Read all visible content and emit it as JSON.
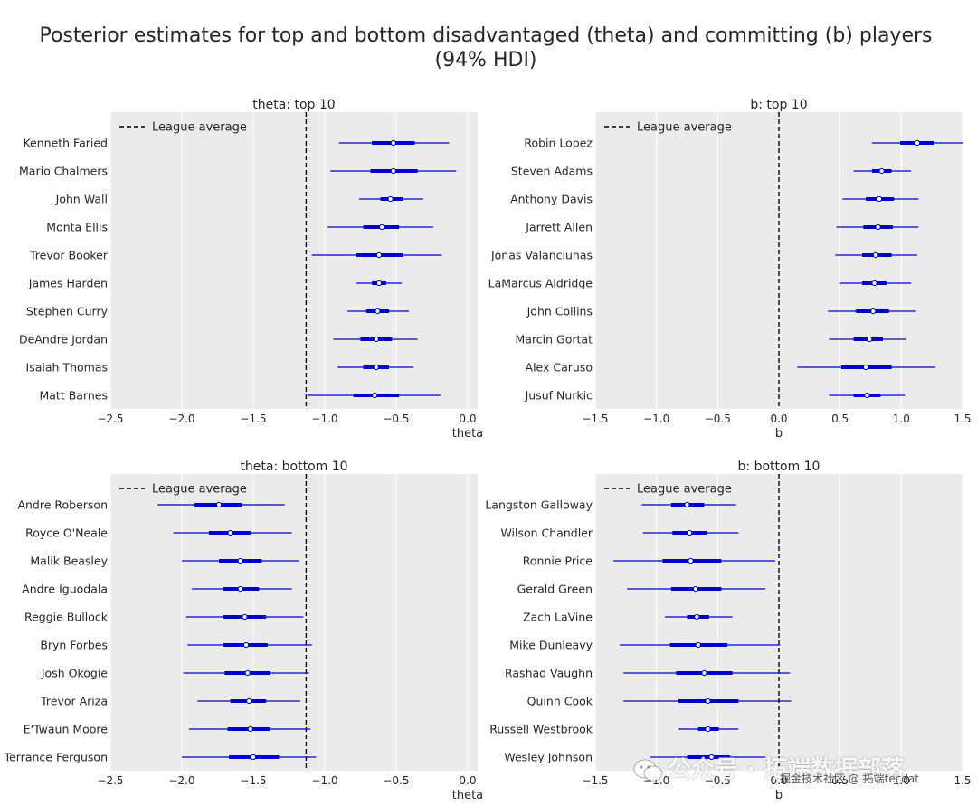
{
  "figure": {
    "title_line1": "Posterior estimates for top and bottom disadvantaged (theta) and committing (b) players",
    "title_line2": "(94% HDI)"
  },
  "watermark": {
    "text": "公众号 · 拓端数据部落",
    "sub": "掘金技术社区 @ 拓端tecdat"
  },
  "colors": {
    "background": "#ebebeb",
    "grid": "#ffffff",
    "interval": "#0000cc",
    "reference": "#000000",
    "text": "#262626"
  },
  "chart_data": [
    {
      "type": "forest",
      "title": "theta: top 10",
      "xlabel": "theta",
      "xlim": [
        -2.5,
        0.07
      ],
      "xticks": [
        -2.5,
        -2.0,
        -1.5,
        -1.0,
        -0.5,
        0.0
      ],
      "xtick_labels": [
        "−2.5",
        "−2.0",
        "−1.5",
        "−1.0",
        "−0.5",
        "0.0"
      ],
      "reference_line": -1.13,
      "legend": {
        "label": "League average",
        "placement": "top-left"
      },
      "grid": true,
      "players": [
        {
          "name": "Kenneth Faried",
          "mean": -0.52,
          "hdi_low": -0.9,
          "hdi_high": -0.13,
          "iqr_low": -0.67,
          "iqr_high": -0.37
        },
        {
          "name": "Mario Chalmers",
          "mean": -0.52,
          "hdi_low": -0.96,
          "hdi_high": -0.08,
          "iqr_low": -0.68,
          "iqr_high": -0.35
        },
        {
          "name": "John Wall",
          "mean": -0.54,
          "hdi_low": -0.76,
          "hdi_high": -0.31,
          "iqr_low": -0.61,
          "iqr_high": -0.45
        },
        {
          "name": "Monta Ellis",
          "mean": -0.6,
          "hdi_low": -0.98,
          "hdi_high": -0.24,
          "iqr_low": -0.73,
          "iqr_high": -0.48
        },
        {
          "name": "Trevor Booker",
          "mean": -0.62,
          "hdi_low": -1.09,
          "hdi_high": -0.18,
          "iqr_low": -0.78,
          "iqr_high": -0.45
        },
        {
          "name": "James Harden",
          "mean": -0.62,
          "hdi_low": -0.78,
          "hdi_high": -0.46,
          "iqr_low": -0.67,
          "iqr_high": -0.57
        },
        {
          "name": "Stephen Curry",
          "mean": -0.63,
          "hdi_low": -0.84,
          "hdi_high": -0.41,
          "iqr_low": -0.71,
          "iqr_high": -0.55
        },
        {
          "name": "DeAndre Jordan",
          "mean": -0.64,
          "hdi_low": -0.94,
          "hdi_high": -0.35,
          "iqr_low": -0.75,
          "iqr_high": -0.53
        },
        {
          "name": "Isaiah Thomas",
          "mean": -0.64,
          "hdi_low": -0.91,
          "hdi_high": -0.38,
          "iqr_low": -0.73,
          "iqr_high": -0.55
        },
        {
          "name": "Matt Barnes",
          "mean": -0.65,
          "hdi_low": -1.12,
          "hdi_high": -0.19,
          "iqr_low": -0.8,
          "iqr_high": -0.48
        }
      ]
    },
    {
      "type": "forest",
      "title": "b: top 10",
      "xlabel": "b",
      "xlim": [
        -1.5,
        1.5
      ],
      "xticks": [
        -1.5,
        -1.0,
        -0.5,
        0.0,
        0.5,
        1.0,
        1.5
      ],
      "xtick_labels": [
        "−1.5",
        "−1.0",
        "−0.5",
        "0.0",
        "0.5",
        "1.0",
        "1.5"
      ],
      "reference_line": 0.0,
      "legend": {
        "label": "League average",
        "placement": "top-left"
      },
      "grid": true,
      "players": [
        {
          "name": "Robin Lopez",
          "mean": 1.13,
          "hdi_low": 0.76,
          "hdi_high": 1.5,
          "iqr_low": 0.99,
          "iqr_high": 1.27
        },
        {
          "name": "Steven Adams",
          "mean": 0.84,
          "hdi_low": 0.61,
          "hdi_high": 1.08,
          "iqr_low": 0.76,
          "iqr_high": 0.92
        },
        {
          "name": "Anthony Davis",
          "mean": 0.82,
          "hdi_low": 0.52,
          "hdi_high": 1.14,
          "iqr_low": 0.71,
          "iqr_high": 0.94
        },
        {
          "name": "Jarrett Allen",
          "mean": 0.81,
          "hdi_low": 0.47,
          "hdi_high": 1.14,
          "iqr_low": 0.69,
          "iqr_high": 0.93
        },
        {
          "name": "Jonas Valanciunas",
          "mean": 0.79,
          "hdi_low": 0.46,
          "hdi_high": 1.13,
          "iqr_low": 0.68,
          "iqr_high": 0.92
        },
        {
          "name": "LaMarcus Aldridge",
          "mean": 0.78,
          "hdi_low": 0.5,
          "hdi_high": 1.08,
          "iqr_low": 0.68,
          "iqr_high": 0.88
        },
        {
          "name": "John Collins",
          "mean": 0.77,
          "hdi_low": 0.4,
          "hdi_high": 1.12,
          "iqr_low": 0.63,
          "iqr_high": 0.9
        },
        {
          "name": "Marcin Gortat",
          "mean": 0.74,
          "hdi_low": 0.41,
          "hdi_high": 1.04,
          "iqr_low": 0.61,
          "iqr_high": 0.85
        },
        {
          "name": "Alex Caruso",
          "mean": 0.71,
          "hdi_low": 0.15,
          "hdi_high": 1.28,
          "iqr_low": 0.51,
          "iqr_high": 0.92
        },
        {
          "name": "Jusuf Nurkic",
          "mean": 0.72,
          "hdi_low": 0.41,
          "hdi_high": 1.03,
          "iqr_low": 0.61,
          "iqr_high": 0.83
        }
      ]
    },
    {
      "type": "forest",
      "title": "theta: bottom 10",
      "xlabel": "theta",
      "xlim": [
        -2.5,
        0.07
      ],
      "xticks": [
        -2.5,
        -2.0,
        -1.5,
        -1.0,
        -0.5,
        0.0
      ],
      "xtick_labels": [
        "−2.5",
        "−2.0",
        "−1.5",
        "−1.0",
        "−0.5",
        "0.0"
      ],
      "reference_line": -1.13,
      "legend": {
        "label": "League average",
        "placement": "top-left"
      },
      "grid": true,
      "players": [
        {
          "name": "Andre Roberson",
          "mean": -1.74,
          "hdi_low": -2.17,
          "hdi_high": -1.28,
          "iqr_low": -1.91,
          "iqr_high": -1.58
        },
        {
          "name": "Royce O'Neale",
          "mean": -1.66,
          "hdi_low": -2.06,
          "hdi_high": -1.23,
          "iqr_low": -1.81,
          "iqr_high": -1.52
        },
        {
          "name": "Malik Beasley",
          "mean": -1.59,
          "hdi_low": -2.0,
          "hdi_high": -1.18,
          "iqr_low": -1.74,
          "iqr_high": -1.44
        },
        {
          "name": "Andre Iguodala",
          "mean": -1.59,
          "hdi_low": -1.93,
          "hdi_high": -1.23,
          "iqr_low": -1.71,
          "iqr_high": -1.46
        },
        {
          "name": "Reggie Bullock",
          "mean": -1.56,
          "hdi_low": -1.97,
          "hdi_high": -1.15,
          "iqr_low": -1.71,
          "iqr_high": -1.41
        },
        {
          "name": "Bryn Forbes",
          "mean": -1.55,
          "hdi_low": -1.96,
          "hdi_high": -1.09,
          "iqr_low": -1.71,
          "iqr_high": -1.4
        },
        {
          "name": "Josh Okogie",
          "mean": -1.54,
          "hdi_low": -1.99,
          "hdi_high": -1.11,
          "iqr_low": -1.7,
          "iqr_high": -1.38
        },
        {
          "name": "Trevor Ariza",
          "mean": -1.53,
          "hdi_low": -1.89,
          "hdi_high": -1.17,
          "iqr_low": -1.66,
          "iqr_high": -1.41
        },
        {
          "name": "E'Twaun Moore",
          "mean": -1.52,
          "hdi_low": -1.95,
          "hdi_high": -1.1,
          "iqr_low": -1.68,
          "iqr_high": -1.38
        },
        {
          "name": "Terrance Ferguson",
          "mean": -1.5,
          "hdi_low": -2.0,
          "hdi_high": -1.06,
          "iqr_low": -1.67,
          "iqr_high": -1.32
        }
      ]
    },
    {
      "type": "forest",
      "title": "b: bottom 10",
      "xlabel": "b",
      "xlim": [
        -1.5,
        1.5
      ],
      "xticks": [
        -1.5,
        -1.0,
        -0.5,
        0.0,
        0.5,
        1.0,
        1.5
      ],
      "xtick_labels": [
        "−1.5",
        "−1.0",
        "−0.5",
        "0.0",
        "0.5",
        "1.0",
        "1.5"
      ],
      "reference_line": 0.0,
      "legend": {
        "label": "League average",
        "placement": "top-left"
      },
      "grid": true,
      "players": [
        {
          "name": "Langston Galloway",
          "mean": -0.75,
          "hdi_low": -1.12,
          "hdi_high": -0.35,
          "iqr_low": -0.88,
          "iqr_high": -0.61
        },
        {
          "name": "Wilson Chandler",
          "mean": -0.73,
          "hdi_low": -1.11,
          "hdi_high": -0.33,
          "iqr_low": -0.87,
          "iqr_high": -0.59
        },
        {
          "name": "Ronnie Price",
          "mean": -0.72,
          "hdi_low": -1.35,
          "hdi_high": -0.03,
          "iqr_low": -0.95,
          "iqr_high": -0.47
        },
        {
          "name": "Gerald Green",
          "mean": -0.68,
          "hdi_low": -1.24,
          "hdi_high": -0.11,
          "iqr_low": -0.88,
          "iqr_high": -0.47
        },
        {
          "name": "Zach LaVine",
          "mean": -0.67,
          "hdi_low": -0.93,
          "hdi_high": -0.38,
          "iqr_low": -0.75,
          "iqr_high": -0.57
        },
        {
          "name": "Mike Dunleavy",
          "mean": -0.66,
          "hdi_low": -1.3,
          "hdi_high": 0.01,
          "iqr_low": -0.89,
          "iqr_high": -0.42
        },
        {
          "name": "Rashad Vaughn",
          "mean": -0.61,
          "hdi_low": -1.27,
          "hdi_high": 0.09,
          "iqr_low": -0.84,
          "iqr_high": -0.38
        },
        {
          "name": "Quinn Cook",
          "mean": -0.58,
          "hdi_low": -1.27,
          "hdi_high": 0.1,
          "iqr_low": -0.82,
          "iqr_high": -0.33
        },
        {
          "name": "Russell Westbrook",
          "mean": -0.58,
          "hdi_low": -0.82,
          "hdi_high": -0.33,
          "iqr_low": -0.66,
          "iqr_high": -0.49
        },
        {
          "name": "Wesley Johnson",
          "mean": -0.55,
          "hdi_low": -1.05,
          "hdi_high": -0.11,
          "iqr_low": -0.75,
          "iqr_high": -0.4
        }
      ]
    }
  ]
}
